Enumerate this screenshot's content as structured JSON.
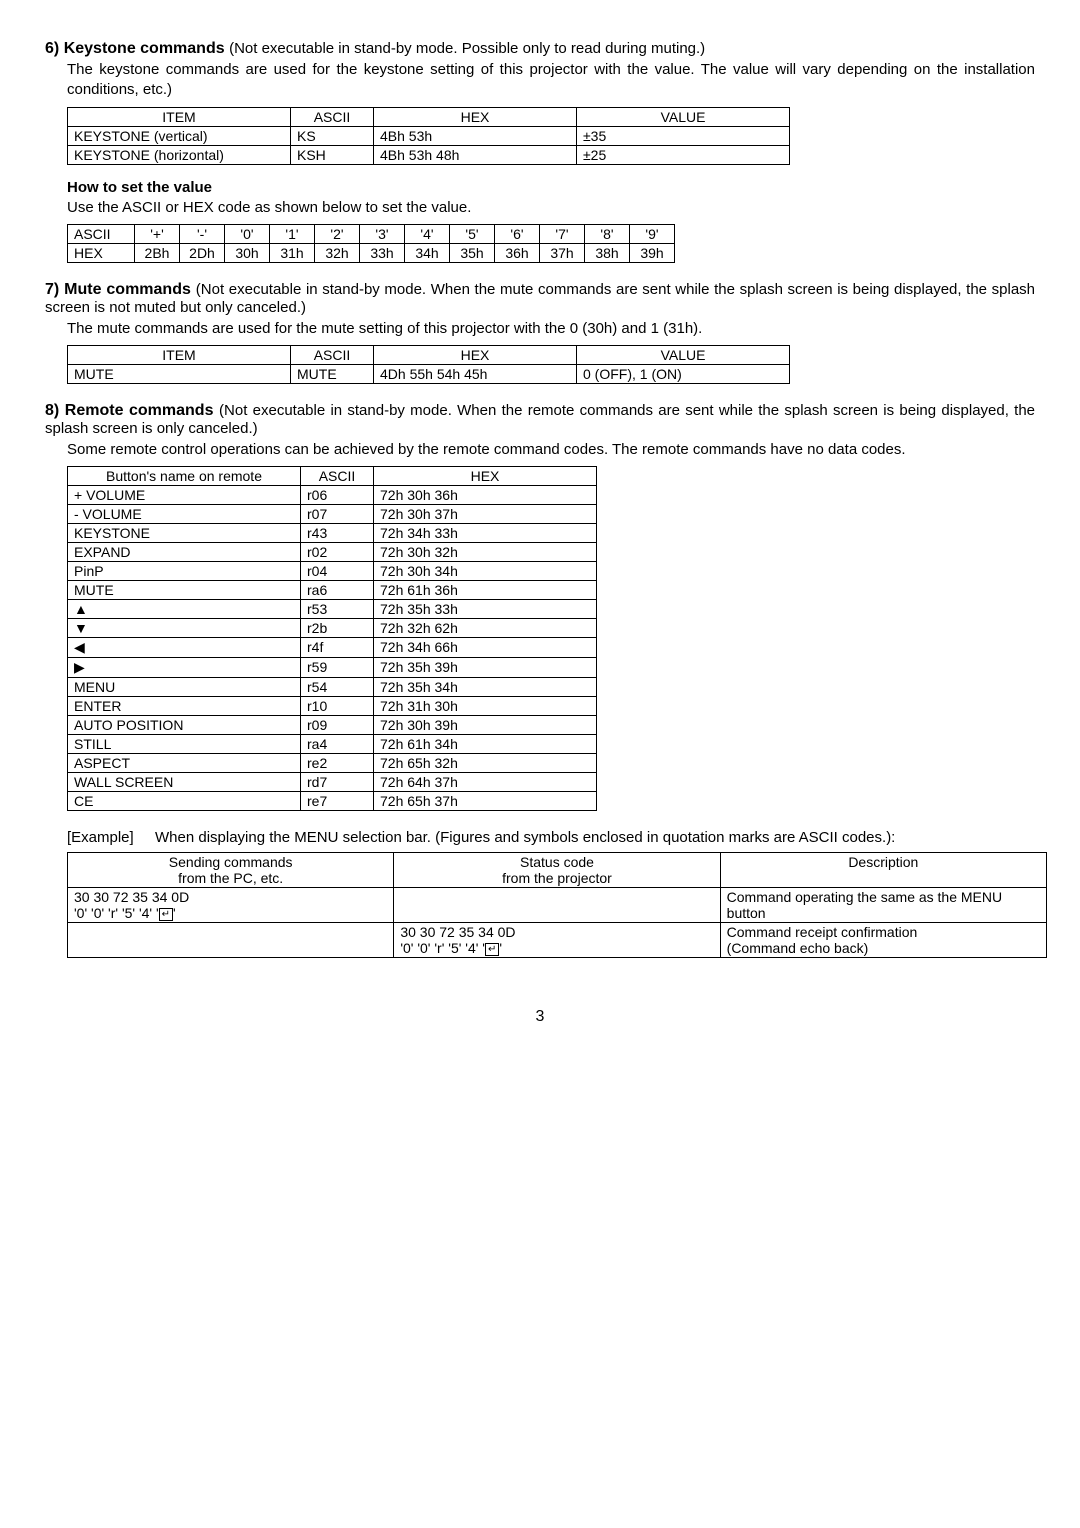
{
  "sec6": {
    "num": "6)",
    "title": "Keystone commands",
    "note": "(Not executable in stand-by mode. Possible only to read during muting.)",
    "para": "The keystone commands are used for the keystone setting of this projector with the value. The value will vary depending on the installation conditions, etc.)",
    "table": {
      "head": [
        "ITEM",
        "ASCII",
        "HEX",
        "VALUE"
      ],
      "rows": [
        [
          "KEYSTONE (vertical)",
          "KS",
          "4Bh  53h",
          "±35"
        ],
        [
          "KEYSTONE (horizontal)",
          "KSH",
          "4Bh  53h  48h",
          "±25"
        ]
      ]
    },
    "howto_head": "How to set the value",
    "howto_para": "Use the ASCII or HEX code as shown below to set the value.",
    "ascii_table": {
      "row1": [
        "ASCII",
        "'+'",
        "'-'",
        "'0'",
        "'1'",
        "'2'",
        "'3'",
        "'4'",
        "'5'",
        "'6'",
        "'7'",
        "'8'",
        "'9'"
      ],
      "row2": [
        "HEX",
        "2Bh",
        "2Dh",
        "30h",
        "31h",
        "32h",
        "33h",
        "34h",
        "35h",
        "36h",
        "37h",
        "38h",
        "39h"
      ]
    }
  },
  "sec7": {
    "num": "7)",
    "title": "Mute commands",
    "note": "(Not executable in stand-by mode. When the mute commands are sent while the splash screen is being displayed, the splash screen is not muted but only canceled.)",
    "para": "The mute commands are used for the mute setting of this projector with the 0 (30h) and 1 (31h).",
    "table": {
      "head": [
        "ITEM",
        "ASCII",
        "HEX",
        "VALUE"
      ],
      "rows": [
        [
          "MUTE",
          "MUTE",
          "4Dh  55h  54h  45h",
          "0 (OFF),  1 (ON)"
        ]
      ]
    }
  },
  "sec8": {
    "num": "8)",
    "title": "Remote commands",
    "note": "(Not executable in stand-by mode. When the remote commands are sent while the splash screen is being displayed, the splash screen is only canceled.)",
    "para": "Some remote control operations can be achieved by the remote command codes. The remote commands have no data codes.",
    "table": {
      "head": [
        "Button's name on remote",
        "ASCII",
        "HEX"
      ],
      "rows": [
        [
          "+ VOLUME",
          "r06",
          "72h  30h  36h"
        ],
        [
          "- VOLUME",
          "r07",
          "72h  30h  37h"
        ],
        [
          "KEYSTONE",
          "r43",
          "72h  34h  33h"
        ],
        [
          "EXPAND",
          "r02",
          "72h  30h  32h"
        ],
        [
          "PinP",
          "r04",
          "72h  30h  34h"
        ],
        [
          "MUTE",
          "ra6",
          "72h  61h  36h"
        ],
        [
          "▲",
          "r53",
          "72h  35h  33h"
        ],
        [
          "▼",
          "r2b",
          "72h  32h  62h"
        ],
        [
          "◀",
          "r4f",
          "72h  34h  66h"
        ],
        [
          "▶",
          "r59",
          "72h  35h  39h"
        ],
        [
          "MENU",
          "r54",
          "72h  35h  34h"
        ],
        [
          "ENTER",
          "r10",
          "72h  31h  30h"
        ],
        [
          "AUTO POSITION",
          "r09",
          "72h  30h  39h"
        ],
        [
          "STILL",
          "ra4",
          "72h  61h  34h"
        ],
        [
          "ASPECT",
          "re2",
          "72h  65h  32h"
        ],
        [
          "WALL SCREEN",
          "rd7",
          "72h  64h  37h"
        ],
        [
          "CE",
          "re7",
          "72h  65h  37h"
        ]
      ]
    },
    "example_label": "[Example]",
    "example_text": "When displaying the MENU selection bar. (Figures and symbols enclosed in quotation marks are ASCII codes.):",
    "pc_table": {
      "head_row1": [
        "Sending commands",
        "Status code",
        "Description"
      ],
      "head_row2": [
        "from the PC, etc.",
        "from the projector",
        ""
      ],
      "rows": [
        {
          "c1a": "30 30 72 35 34 0D",
          "c1b": "'0' '0' 'r' '5' '4' '↵'",
          "c2": "",
          "c3": "Command operating the same as the MENU button"
        },
        {
          "c1": "",
          "c2a": "30 30 72 35 34 0D",
          "c2b": "'0' '0' 'r' '5' '4' '↵'",
          "c3a": "Command receipt confirmation",
          "c3b": "(Command echo back)"
        }
      ]
    }
  },
  "page": "3"
}
